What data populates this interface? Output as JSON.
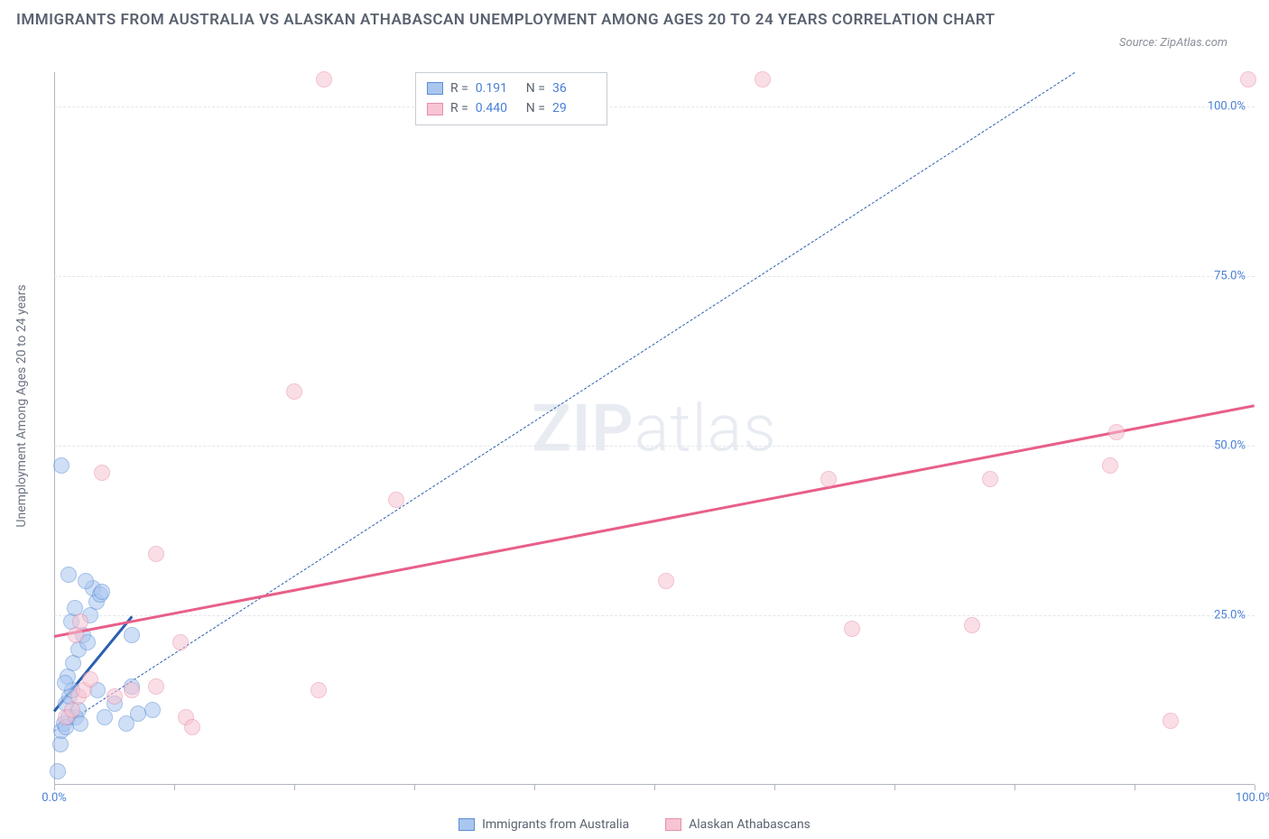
{
  "title": "IMMIGRANTS FROM AUSTRALIA VS ALASKAN ATHABASCAN UNEMPLOYMENT AMONG AGES 20 TO 24 YEARS CORRELATION CHART",
  "source": "Source: ZipAtlas.com",
  "y_axis_label": "Unemployment Among Ages 20 to 24 years",
  "watermark_a": "ZIP",
  "watermark_b": "atlas",
  "chart": {
    "type": "scatter",
    "xlim": [
      0,
      100
    ],
    "ylim": [
      0,
      105
    ],
    "x_ticks": [
      0,
      10,
      20,
      30,
      40,
      50,
      60,
      70,
      80,
      90,
      100
    ],
    "x_tick_labels": {
      "0": "0.0%",
      "100": "100.0%"
    },
    "y_ticks": [
      25,
      50,
      75,
      100
    ],
    "y_tick_labels": {
      "25": "25.0%",
      "50": "50.0%",
      "75": "75.0%",
      "100": "100.0%"
    },
    "grid_color": "#e3e6eb",
    "axis_color": "#b0b6c0",
    "background_color": "#ffffff",
    "marker_radius": 9,
    "marker_opacity": 0.55
  },
  "series": [
    {
      "name": "Immigrants from Australia",
      "key": "australia",
      "fill": "#a9c6ef",
      "stroke": "#5b8fd6",
      "line_color": "#2b5fb0",
      "line_dash": true,
      "R": "0.191",
      "N": "36",
      "trend": {
        "x1": 0,
        "y1": 8,
        "x2": 85,
        "y2": 105
      },
      "short_trend": {
        "x1": 0,
        "y1": 11,
        "x2": 6.5,
        "y2": 25
      },
      "points": [
        [
          0.3,
          2
        ],
        [
          0.5,
          6
        ],
        [
          0.6,
          8
        ],
        [
          0.8,
          9
        ],
        [
          1.0,
          8.5
        ],
        [
          1.2,
          10
        ],
        [
          1.0,
          12
        ],
        [
          1.3,
          13
        ],
        [
          1.5,
          14
        ],
        [
          1.1,
          16
        ],
        [
          0.9,
          15
        ],
        [
          1.8,
          10
        ],
        [
          2.0,
          11
        ],
        [
          2.2,
          9
        ],
        [
          1.6,
          18
        ],
        [
          2.0,
          20
        ],
        [
          2.4,
          22
        ],
        [
          2.8,
          21
        ],
        [
          3.0,
          25
        ],
        [
          3.5,
          27
        ],
        [
          3.2,
          29
        ],
        [
          2.6,
          30
        ],
        [
          3.8,
          28
        ],
        [
          4.0,
          28.5
        ],
        [
          1.4,
          24
        ],
        [
          1.7,
          26
        ],
        [
          1.2,
          31
        ],
        [
          0.6,
          47
        ],
        [
          6.0,
          9
        ],
        [
          6.5,
          14.5
        ],
        [
          6.5,
          22
        ],
        [
          5.0,
          12
        ],
        [
          4.2,
          10
        ],
        [
          3.6,
          14
        ],
        [
          8.2,
          11
        ],
        [
          7.0,
          10.5
        ]
      ]
    },
    {
      "name": "Alaskan Athabascans",
      "key": "athabascan",
      "fill": "#f6c4d2",
      "stroke": "#e98fab",
      "line_color": "#e85f89",
      "line_dash": false,
      "R": "0.440",
      "N": "29",
      "trend": {
        "x1": 0,
        "y1": 22,
        "x2": 100,
        "y2": 56
      },
      "points": [
        [
          1.0,
          10
        ],
        [
          1.5,
          11
        ],
        [
          2.0,
          13
        ],
        [
          2.5,
          14
        ],
        [
          3.0,
          15.5
        ],
        [
          2.2,
          24
        ],
        [
          1.8,
          22
        ],
        [
          5.0,
          13
        ],
        [
          6.5,
          14
        ],
        [
          8.5,
          14.5
        ],
        [
          10.5,
          21
        ],
        [
          11.0,
          10
        ],
        [
          11.5,
          8.5
        ],
        [
          4.0,
          46
        ],
        [
          8.5,
          34
        ],
        [
          22.0,
          14
        ],
        [
          22.5,
          104
        ],
        [
          20.0,
          58
        ],
        [
          28.5,
          42
        ],
        [
          51.0,
          30
        ],
        [
          59.0,
          104
        ],
        [
          64.5,
          45
        ],
        [
          66.5,
          23
        ],
        [
          76.5,
          23.5
        ],
        [
          78.0,
          45
        ],
        [
          88.0,
          47
        ],
        [
          88.5,
          52
        ],
        [
          93.0,
          9.5
        ],
        [
          99.5,
          104
        ]
      ]
    }
  ],
  "legend_stats_label_R": "R =",
  "legend_stats_label_N": "N ="
}
